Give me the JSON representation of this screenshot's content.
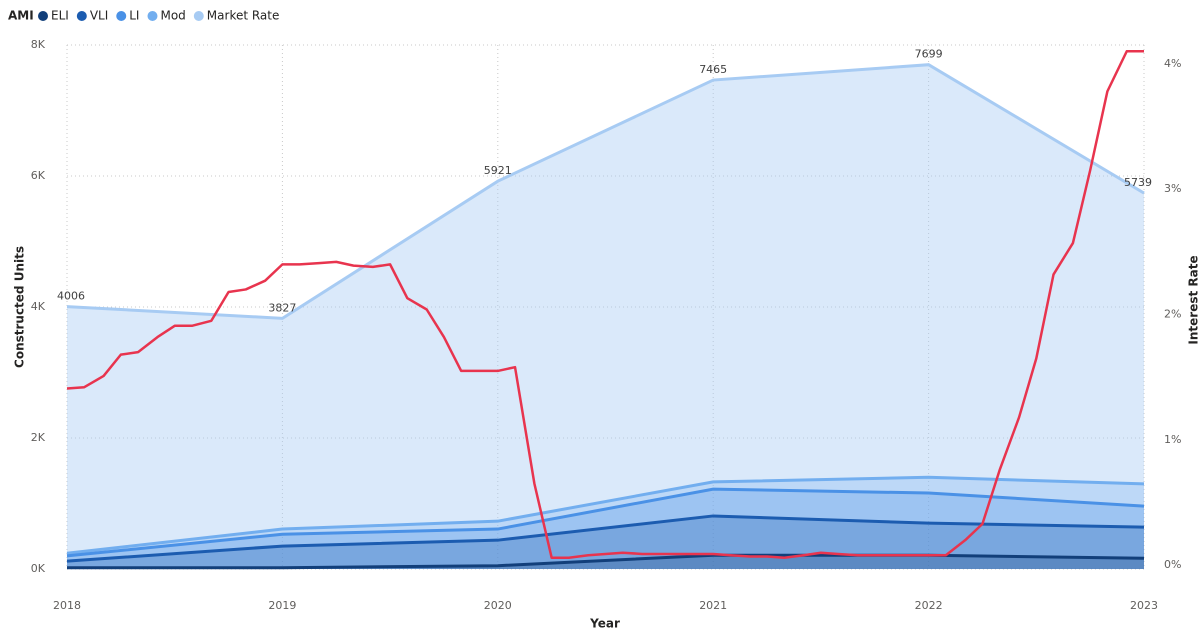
{
  "chart_data": {
    "type": "area",
    "legend_title": "AMI",
    "x_label": "Year",
    "y_label": "Constructed Units",
    "y2_label": "Interest Rate",
    "x": [
      2018,
      2019,
      2020,
      2021,
      2022,
      2023
    ],
    "xlim": [
      2018,
      2023
    ],
    "xticks": [
      2018,
      2019,
      2020,
      2021,
      2022,
      2023
    ],
    "ylim": [
      0,
      8000
    ],
    "yticks": [
      {
        "value": 0,
        "label": "0K"
      },
      {
        "value": 2000,
        "label": "2K"
      },
      {
        "value": 4000,
        "label": "4K"
      },
      {
        "value": 6000,
        "label": "6K"
      },
      {
        "value": 8000,
        "label": "8K"
      }
    ],
    "y2lim": [
      -0.03,
      4.15
    ],
    "y2ticks": [
      {
        "value": 0,
        "label": "0%"
      },
      {
        "value": 1,
        "label": "1%"
      },
      {
        "value": 2,
        "label": "2%"
      },
      {
        "value": 3,
        "label": "3%"
      },
      {
        "value": 4,
        "label": "4%"
      }
    ],
    "grid": true,
    "legend": "top-left",
    "series": [
      {
        "name": "ELI",
        "color": "#123f7a",
        "values": [
          20,
          20,
          50,
          210,
          210,
          165
        ]
      },
      {
        "name": "VLI",
        "color": "#1c5cb0",
        "values": [
          120,
          350,
          440,
          810,
          700,
          640
        ]
      },
      {
        "name": "LI",
        "color": "#4a91e6",
        "values": [
          200,
          530,
          610,
          1220,
          1160,
          960
        ]
      },
      {
        "name": "Mod",
        "color": "#72aeef",
        "values": [
          240,
          610,
          730,
          1330,
          1400,
          1300
        ]
      },
      {
        "name": "Market Rate",
        "color": "#a7cbf3",
        "values": [
          4006,
          3827,
          5921,
          7465,
          7699,
          5739
        ]
      },
      {
        "type": "line",
        "axis": "y2",
        "color": "#e8344e",
        "x": [
          2018,
          2018.08,
          2018.17,
          2018.25,
          2018.33,
          2018.42,
          2018.5,
          2018.58,
          2018.67,
          2018.75,
          2018.83,
          2018.92,
          2019,
          2019.08,
          2019.17,
          2019.25,
          2019.33,
          2019.42,
          2019.5,
          2019.58,
          2019.67,
          2019.75,
          2019.83,
          2019.92,
          2020,
          2020.08,
          2020.17,
          2020.25,
          2020.33,
          2020.42,
          2020.5,
          2020.58,
          2020.67,
          2020.75,
          2020.83,
          2020.92,
          2021,
          2021.08,
          2021.17,
          2021.25,
          2021.33,
          2021.42,
          2021.5,
          2021.58,
          2021.67,
          2021.75,
          2021.83,
          2021.92,
          2022,
          2022.08,
          2022.17,
          2022.25,
          2022.33,
          2022.42,
          2022.5,
          2022.58,
          2022.67,
          2022.75,
          2022.83,
          2022.92,
          2023
        ],
        "values": [
          1.41,
          1.42,
          1.51,
          1.68,
          1.7,
          1.82,
          1.91,
          1.91,
          1.95,
          2.18,
          2.2,
          2.27,
          2.4,
          2.4,
          2.41,
          2.42,
          2.39,
          2.38,
          2.4,
          2.13,
          2.04,
          1.82,
          1.55,
          1.55,
          1.55,
          1.58,
          0.65,
          0.06,
          0.06,
          0.08,
          0.09,
          0.1,
          0.09,
          0.09,
          0.09,
          0.09,
          0.09,
          0.08,
          0.07,
          0.07,
          0.06,
          0.08,
          0.1,
          0.09,
          0.08,
          0.08,
          0.08,
          0.08,
          0.08,
          0.08,
          0.2,
          0.33,
          0.76,
          1.18,
          1.65,
          2.32,
          2.57,
          3.15,
          3.78,
          4.1,
          4.1
        ]
      }
    ]
  }
}
